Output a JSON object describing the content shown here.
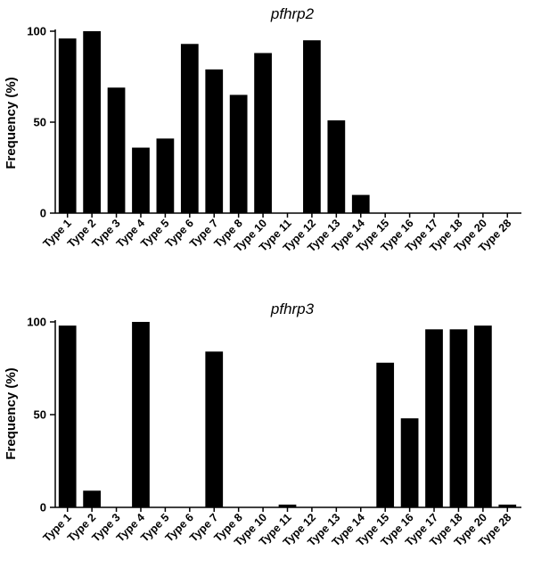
{
  "chart_data": [
    {
      "type": "bar",
      "title": "pfhrp2",
      "xlabel": "",
      "ylabel": "Frequency (%)",
      "ylim": [
        0,
        100
      ],
      "yticks": [
        "0",
        "50",
        "100"
      ],
      "categories": [
        "Type 1",
        "Type 2",
        "Type 3",
        "Type 4",
        "Type 5",
        "Type 6",
        "Type 7",
        "Type 8",
        "Type 10",
        "Type 11",
        "Type 12",
        "Type 13",
        "Type 14",
        "Type 15",
        "Type 16",
        "Type 17",
        "Type 18",
        "Type 20",
        "Type 28"
      ],
      "values": [
        96,
        100,
        69,
        36,
        41,
        93,
        79,
        65,
        88,
        0,
        95,
        51,
        10,
        0,
        0,
        0,
        0,
        0,
        0
      ],
      "bar_color": "#000000",
      "grid": false
    },
    {
      "type": "bar",
      "title": "pfhrp3",
      "xlabel": "",
      "ylabel": "Frequency (%)",
      "ylim": [
        0,
        100
      ],
      "yticks": [
        "0",
        "50",
        "100"
      ],
      "categories": [
        "Type 1",
        "Type 2",
        "Type 3",
        "Type 4",
        "Type 5",
        "Type 6",
        "Type 7",
        "Type 8",
        "Type 10",
        "Type 11",
        "Type 12",
        "Type 13",
        "Type 14",
        "Type 15",
        "Type 16",
        "Type 17",
        "Type 18",
        "Type 20",
        "Type 28"
      ],
      "values": [
        98,
        9,
        0,
        100,
        0,
        0,
        84,
        0,
        0,
        1.5,
        0,
        0,
        0,
        78,
        48,
        96,
        96,
        98,
        1.5
      ],
      "bar_color": "#000000",
      "grid": false
    }
  ]
}
